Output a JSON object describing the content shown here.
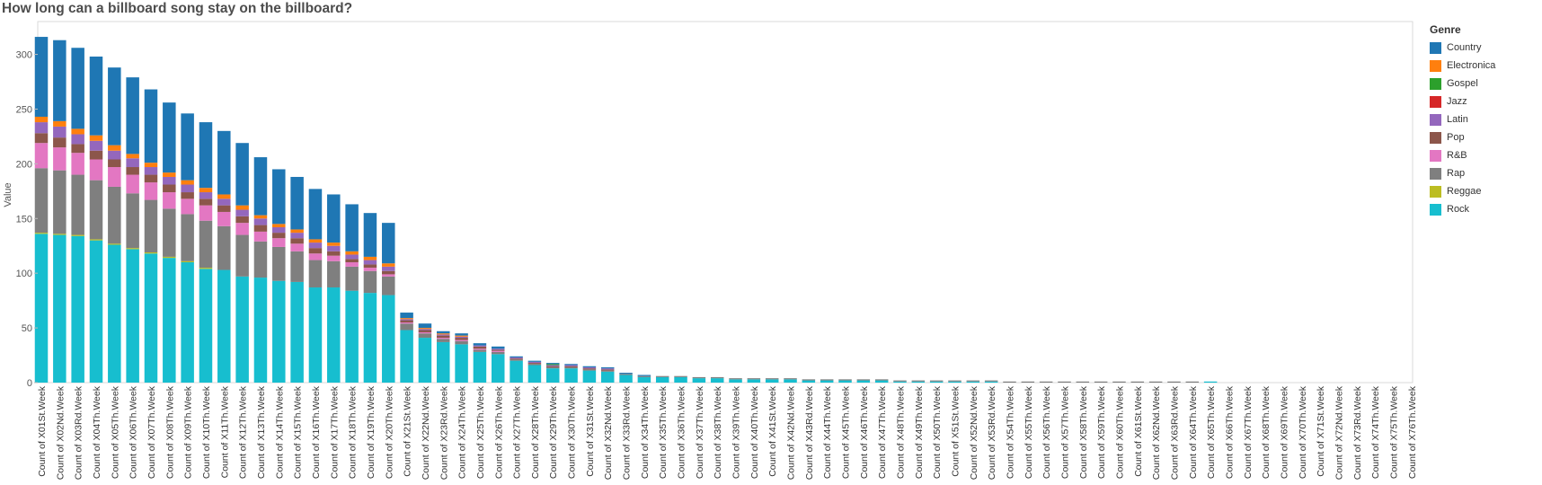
{
  "chart_data": {
    "type": "bar",
    "stacked": true,
    "title": "How long can a billboard song stay on the billboard?",
    "xlabel": "",
    "ylabel": "Value",
    "ylim": [
      0,
      330
    ],
    "yticks": [
      0,
      50,
      100,
      150,
      200,
      250,
      300
    ],
    "grid": false,
    "legend_title": "Genre",
    "legend_position": "right",
    "categories": [
      "Count of X01St.Week",
      "Count of X02Nd.Week",
      "Count of X03Rd.Week",
      "Count of X04Th.Week",
      "Count of X05Th.Week",
      "Count of X06Th.Week",
      "Count of X07Th.Week",
      "Count of X08Th.Week",
      "Count of X09Th.Week",
      "Count of X10Th.Week",
      "Count of X11Th.Week",
      "Count of X12Th.Week",
      "Count of X13Th.Week",
      "Count of X14Th.Week",
      "Count of X15Th.Week",
      "Count of X16Th.Week",
      "Count of X17Th.Week",
      "Count of X18Th.Week",
      "Count of X19Th.Week",
      "Count of X20Th.Week",
      "Count of X21St.Week",
      "Count of X22Nd.Week",
      "Count of X23Rd.Week",
      "Count of X24Th.Week",
      "Count of X25Th.Week",
      "Count of X26Th.Week",
      "Count of X27Th.Week",
      "Count of X28Th.Week",
      "Count of X29Th.Week",
      "Count of X30Th.Week",
      "Count of X31St.Week",
      "Count of X32Nd.Week",
      "Count of X33Rd.Week",
      "Count of X34Th.Week",
      "Count of X35Th.Week",
      "Count of X36Th.Week",
      "Count of X37Th.Week",
      "Count of X38Th.Week",
      "Count of X39Th.Week",
      "Count of X40Th.Week",
      "Count of X41St.Week",
      "Count of X42Nd.Week",
      "Count of X43Rd.Week",
      "Count of X44Th.Week",
      "Count of X45Th.Week",
      "Count of X46Th.Week",
      "Count of X47Th.Week",
      "Count of X48Th.Week",
      "Count of X49Th.Week",
      "Count of X50Th.Week",
      "Count of X51St.Week",
      "Count of X52Nd.Week",
      "Count of X53Rd.Week",
      "Count of X54Th.Week",
      "Count of X55Th.Week",
      "Count of X56Th.Week",
      "Count of X57Th.Week",
      "Count of X58Th.Week",
      "Count of X59Th.Week",
      "Count of X60Th.Week",
      "Count of X61St.Week",
      "Count of X62Nd.Week",
      "Count of X63Rd.Week",
      "Count of X64Th.Week",
      "Count of X65Th.Week",
      "Count of X66Th.Week",
      "Count of X67Th.Week",
      "Count of X68Th.Week",
      "Count of X69Th.Week",
      "Count of X70Th.Week",
      "Count of X71St.Week",
      "Count of X72Nd.Week",
      "Count of X73Rd.Week",
      "Count of X74Th.Week",
      "Count of X75Th.Week",
      "Count of X76Th.Week"
    ],
    "series": [
      {
        "name": "Rock",
        "color": "#17becf",
        "values": [
          136,
          135,
          134,
          130,
          126,
          122,
          118,
          114,
          110,
          104,
          103,
          97,
          96,
          93,
          92,
          87,
          87,
          84,
          82,
          80,
          48,
          41,
          37,
          35,
          28,
          26,
          20,
          16,
          13,
          13,
          11,
          10,
          7,
          5,
          5,
          5,
          4,
          4,
          3,
          3,
          3,
          3,
          2,
          2,
          2,
          2,
          2,
          1,
          1,
          1,
          1,
          1,
          1,
          0,
          0,
          0,
          0,
          0,
          0,
          0,
          0,
          0,
          0,
          0,
          1,
          0,
          0,
          0,
          0,
          0,
          0,
          0,
          0,
          0,
          0,
          0
        ]
      },
      {
        "name": "Reggae",
        "color": "#bcbd22",
        "values": [
          1,
          1,
          1,
          1,
          1,
          1,
          1,
          1,
          1,
          1,
          0,
          0,
          0,
          0,
          0,
          0,
          0,
          0,
          0,
          0,
          0,
          0,
          0,
          0,
          0,
          0,
          0,
          0,
          0,
          0,
          0,
          0,
          0,
          0,
          0,
          0,
          0,
          0,
          0,
          0,
          0,
          0,
          0,
          0,
          0,
          0,
          0,
          0,
          0,
          0,
          0,
          0,
          0,
          0,
          0,
          0,
          0,
          0,
          0,
          0,
          0,
          0,
          0,
          0,
          0,
          0,
          0,
          0,
          0,
          0,
          0,
          0,
          0,
          0,
          0,
          0
        ]
      },
      {
        "name": "Rap",
        "color": "#7f7f7f",
        "values": [
          59,
          58,
          55,
          54,
          52,
          50,
          48,
          44,
          43,
          43,
          40,
          38,
          33,
          31,
          28,
          25,
          24,
          22,
          20,
          17,
          6,
          4,
          3,
          3,
          2,
          2,
          1,
          1,
          1,
          1,
          1,
          1,
          1,
          1,
          1,
          1,
          1,
          1,
          1,
          1,
          1,
          1,
          1,
          1,
          1,
          1,
          1,
          1,
          1,
          1,
          1,
          1,
          1,
          1,
          1,
          1,
          1,
          1,
          1,
          1,
          1,
          1,
          1,
          1,
          0,
          0,
          0,
          0,
          0,
          0,
          0,
          0,
          0,
          0,
          0,
          0
        ]
      },
      {
        "name": "R&B",
        "color": "#e377c2",
        "values": [
          23,
          21,
          20,
          19,
          18,
          17,
          16,
          15,
          14,
          14,
          13,
          11,
          9,
          8,
          7,
          6,
          5,
          4,
          3,
          2,
          1,
          1,
          1,
          1,
          1,
          1,
          0,
          0,
          0,
          0,
          0,
          0,
          0,
          0,
          0,
          0,
          0,
          0,
          0,
          0,
          0,
          0,
          0,
          0,
          0,
          0,
          0,
          0,
          0,
          0,
          0,
          0,
          0,
          0,
          0,
          0,
          0,
          0,
          0,
          0,
          0,
          0,
          0,
          0,
          0,
          0,
          0,
          0,
          0,
          0,
          0,
          0,
          0,
          0,
          0,
          0
        ]
      },
      {
        "name": "Pop",
        "color": "#8c564b",
        "values": [
          9,
          9,
          8,
          8,
          7,
          7,
          7,
          7,
          6,
          6,
          6,
          6,
          6,
          5,
          5,
          5,
          4,
          3,
          3,
          3,
          2,
          2,
          2,
          2,
          2,
          1,
          1,
          1,
          1,
          1,
          1,
          1,
          0,
          0,
          0,
          0,
          0,
          0,
          0,
          0,
          0,
          0,
          0,
          0,
          0,
          0,
          0,
          0,
          0,
          0,
          0,
          0,
          0,
          0,
          0,
          0,
          0,
          0,
          0,
          0,
          0,
          0,
          0,
          0,
          0,
          0,
          0,
          0,
          0,
          0,
          0,
          0,
          0,
          0,
          0,
          0
        ]
      },
      {
        "name": "Latin",
        "color": "#9467bd",
        "values": [
          10,
          10,
          9,
          9,
          8,
          8,
          7,
          7,
          7,
          6,
          6,
          6,
          6,
          5,
          5,
          5,
          5,
          4,
          4,
          4,
          1,
          1,
          1,
          1,
          1,
          1,
          1,
          1,
          1,
          1,
          1,
          1,
          0,
          0,
          0,
          0,
          0,
          0,
          0,
          0,
          0,
          0,
          0,
          0,
          0,
          0,
          0,
          0,
          0,
          0,
          0,
          0,
          0,
          0,
          0,
          0,
          0,
          0,
          0,
          0,
          0,
          0,
          0,
          0,
          0,
          0,
          0,
          0,
          0,
          0,
          0,
          0,
          0,
          0,
          0,
          0
        ]
      },
      {
        "name": "Jazz",
        "color": "#d62728",
        "values": [
          0,
          0,
          0,
          0,
          0,
          0,
          0,
          0,
          0,
          0,
          0,
          0,
          0,
          0,
          0,
          0,
          0,
          0,
          0,
          0,
          0,
          0,
          0,
          0,
          0,
          0,
          0,
          0,
          0,
          0,
          0,
          0,
          0,
          0,
          0,
          0,
          0,
          0,
          0,
          0,
          0,
          0,
          0,
          0,
          0,
          0,
          0,
          0,
          0,
          0,
          0,
          0,
          0,
          0,
          0,
          0,
          0,
          0,
          0,
          0,
          0,
          0,
          0,
          0,
          0,
          0,
          0,
          0,
          0,
          0,
          0,
          0,
          0,
          0,
          0,
          0
        ]
      },
      {
        "name": "Gospel",
        "color": "#2ca02c",
        "values": [
          0,
          0,
          0,
          0,
          0,
          0,
          0,
          0,
          0,
          0,
          0,
          0,
          0,
          0,
          0,
          0,
          0,
          0,
          0,
          0,
          0,
          0,
          0,
          0,
          0,
          0,
          0,
          0,
          1,
          0,
          0,
          0,
          0,
          0,
          0,
          0,
          0,
          0,
          0,
          0,
          0,
          0,
          0,
          0,
          0,
          0,
          0,
          0,
          0,
          0,
          0,
          0,
          0,
          0,
          0,
          0,
          0,
          0,
          0,
          0,
          0,
          0,
          0,
          0,
          0,
          0,
          0,
          0,
          0,
          0,
          0,
          0,
          0,
          0,
          0,
          0
        ]
      },
      {
        "name": "Electronica",
        "color": "#ff7f0e",
        "values": [
          5,
          5,
          5,
          5,
          5,
          4,
          4,
          4,
          4,
          4,
          4,
          4,
          3,
          3,
          3,
          3,
          3,
          3,
          3,
          3,
          1,
          1,
          1,
          1,
          0,
          0,
          0,
          0,
          0,
          0,
          0,
          0,
          0,
          0,
          0,
          0,
          0,
          0,
          0,
          0,
          0,
          0,
          0,
          0,
          0,
          0,
          0,
          0,
          0,
          0,
          0,
          0,
          0,
          0,
          0,
          0,
          0,
          0,
          0,
          0,
          0,
          0,
          0,
          0,
          0,
          0,
          0,
          0,
          0,
          0,
          0,
          0,
          0,
          0,
          0,
          0
        ]
      },
      {
        "name": "Country",
        "color": "#1f77b4",
        "values": [
          73,
          74,
          74,
          72,
          71,
          70,
          67,
          64,
          61,
          60,
          58,
          57,
          53,
          50,
          48,
          46,
          44,
          43,
          40,
          37,
          5,
          4,
          2,
          2,
          2,
          2,
          1,
          1,
          1,
          1,
          1,
          1,
          1,
          1,
          0,
          0,
          0,
          0,
          0,
          0,
          0,
          0,
          0,
          0,
          0,
          0,
          0,
          0,
          0,
          0,
          0,
          0,
          0,
          0,
          0,
          0,
          0,
          0,
          0,
          0,
          0,
          0,
          0,
          0,
          0,
          0,
          0,
          0,
          0,
          0,
          0,
          0,
          0,
          0,
          0,
          0
        ]
      }
    ],
    "legend_order": [
      "Country",
      "Electronica",
      "Gospel",
      "Jazz",
      "Latin",
      "Pop",
      "R&B",
      "Rap",
      "Reggae",
      "Rock"
    ]
  }
}
